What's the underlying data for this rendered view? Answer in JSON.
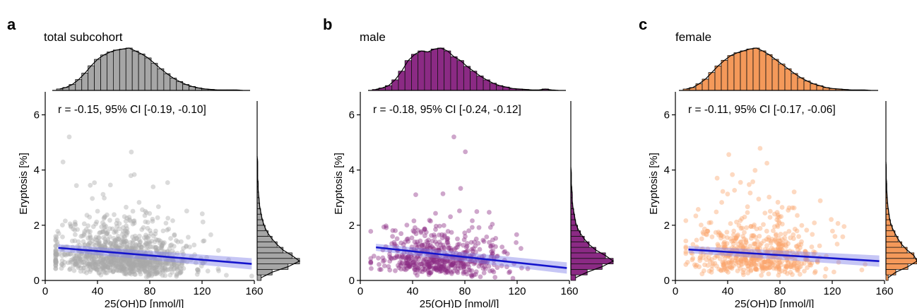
{
  "chart_data": [
    {
      "type": "scatter",
      "panel_label": "a",
      "title": "total subcohort",
      "annotation": "r = -0.15, 95% CI [-0.19, -0.10]",
      "xlabel": "25(OH)D [nmol/l]",
      "ylabel": "Eryptosis [%]",
      "xlim": [
        0,
        160
      ],
      "ylim": [
        0,
        6.5
      ],
      "xticks": [
        "0",
        "40",
        "80",
        "120",
        "160"
      ],
      "yticks": [
        "0",
        "2",
        "4",
        "6"
      ],
      "point_color": "#a9a9a9",
      "hist_color": "#a6a6a6",
      "fit_color": "#1414cc",
      "fit_line": {
        "x": [
          10,
          158
        ],
        "y": [
          1.18,
          0.6
        ]
      },
      "series": [
        {
          "n_points": 1100,
          "x_mean": 60,
          "x_sd": 26,
          "y_median": 0.85
        }
      ],
      "x_hist": {
        "bins": [
          5,
          10,
          15,
          20,
          25,
          30,
          35,
          40,
          45,
          50,
          55,
          60,
          65,
          70,
          75,
          80,
          85,
          90,
          95,
          100,
          105,
          110,
          115,
          120,
          125,
          130,
          135,
          140,
          145,
          150
        ],
        "counts": [
          3,
          6,
          12,
          22,
          35,
          50,
          63,
          72,
          78,
          82,
          84,
          86,
          80,
          74,
          66,
          55,
          44,
          34,
          25,
          18,
          12,
          8,
          5,
          3,
          2,
          1,
          1,
          1,
          1,
          0
        ]
      },
      "y_hist": {
        "bins": [
          0.1,
          0.3,
          0.5,
          0.7,
          0.9,
          1.1,
          1.3,
          1.5,
          1.7,
          1.9,
          2.1,
          2.3,
          2.5,
          2.7,
          2.9,
          3.1,
          3.3,
          3.5,
          3.7,
          3.9,
          4.1,
          4.3,
          4.5
        ],
        "counts": [
          8,
          30,
          62,
          85,
          70,
          52,
          40,
          30,
          22,
          16,
          12,
          9,
          7,
          5,
          4,
          3,
          2,
          2,
          1,
          1,
          1,
          1,
          0
        ]
      }
    },
    {
      "type": "scatter",
      "panel_label": "b",
      "title": "male",
      "annotation": "r = -0.18, 95% CI [-0.24, -0.12]",
      "xlabel": "25(OH)D [nmol/l]",
      "ylabel": "Eryptosis [%]",
      "xlim": [
        0,
        160
      ],
      "ylim": [
        0,
        6.5
      ],
      "xticks": [
        "0",
        "40",
        "80",
        "120",
        "160"
      ],
      "yticks": [
        "0",
        "2",
        "4",
        "6"
      ],
      "point_color": "#8b2a84",
      "hist_color": "#8b2a84",
      "fit_color": "#1414cc",
      "fit_line": {
        "x": [
          12,
          158
        ],
        "y": [
          1.2,
          0.45
        ]
      },
      "series": [
        {
          "n_points": 550,
          "x_mean": 60,
          "x_sd": 24,
          "y_median": 0.8
        }
      ],
      "x_hist": {
        "bins": [
          10,
          15,
          20,
          25,
          30,
          35,
          40,
          45,
          50,
          55,
          60,
          65,
          70,
          75,
          80,
          85,
          90,
          95,
          100,
          105,
          110,
          115,
          120,
          125,
          130,
          135,
          140,
          145,
          150
        ],
        "counts": [
          2,
          5,
          10,
          22,
          40,
          62,
          75,
          82,
          80,
          86,
          88,
          82,
          70,
          62,
          50,
          40,
          30,
          22,
          15,
          10,
          7,
          4,
          3,
          2,
          1,
          1,
          3,
          1,
          0
        ]
      },
      "y_hist": {
        "bins": [
          0.1,
          0.3,
          0.5,
          0.7,
          0.9,
          1.1,
          1.3,
          1.5,
          1.7,
          1.9,
          2.1,
          2.3,
          2.5,
          2.7,
          2.9,
          3.1,
          3.3,
          3.5,
          3.7,
          3.9,
          4.1
        ],
        "counts": [
          10,
          34,
          65,
          88,
          72,
          52,
          38,
          28,
          20,
          14,
          10,
          8,
          6,
          4,
          3,
          3,
          2,
          1,
          1,
          1,
          0
        ]
      }
    },
    {
      "type": "scatter",
      "panel_label": "c",
      "title": "female",
      "annotation": "r = -0.11, 95% CI [-0.17, -0.06]",
      "xlabel": "25(OH)D [nmol/l]",
      "ylabel": "Eryptosis [%]",
      "xlim": [
        0,
        160
      ],
      "ylim": [
        0,
        6.5
      ],
      "xticks": [
        "0",
        "40",
        "80",
        "120",
        "160"
      ],
      "yticks": [
        "0",
        "2",
        "4",
        "6"
      ],
      "point_color": "#fba56c",
      "hist_color": "#f4995a",
      "fit_color": "#1414cc",
      "fit_line": {
        "x": [
          10,
          156
        ],
        "y": [
          1.12,
          0.7
        ]
      },
      "series": [
        {
          "n_points": 600,
          "x_mean": 62,
          "x_sd": 26,
          "y_median": 0.9
        }
      ],
      "x_hist": {
        "bins": [
          5,
          10,
          15,
          20,
          25,
          30,
          35,
          40,
          45,
          50,
          55,
          60,
          65,
          70,
          75,
          80,
          85,
          90,
          95,
          100,
          105,
          110,
          115,
          120,
          125,
          130,
          135,
          140,
          145,
          150
        ],
        "counts": [
          3,
          6,
          14,
          24,
          38,
          52,
          64,
          74,
          80,
          84,
          88,
          90,
          84,
          76,
          66,
          56,
          46,
          36,
          27,
          20,
          14,
          10,
          6,
          4,
          3,
          2,
          1,
          1,
          1,
          0
        ]
      },
      "y_hist": {
        "bins": [
          0.1,
          0.3,
          0.5,
          0.7,
          0.9,
          1.1,
          1.3,
          1.5,
          1.7,
          1.9,
          2.1,
          2.3,
          2.5,
          2.7,
          2.9,
          3.1,
          3.3,
          3.5,
          3.7,
          3.9,
          4.1,
          4.3
        ],
        "counts": [
          6,
          26,
          58,
          82,
          74,
          56,
          42,
          32,
          24,
          17,
          12,
          9,
          7,
          5,
          4,
          3,
          2,
          2,
          1,
          1,
          1,
          0
        ]
      }
    }
  ]
}
